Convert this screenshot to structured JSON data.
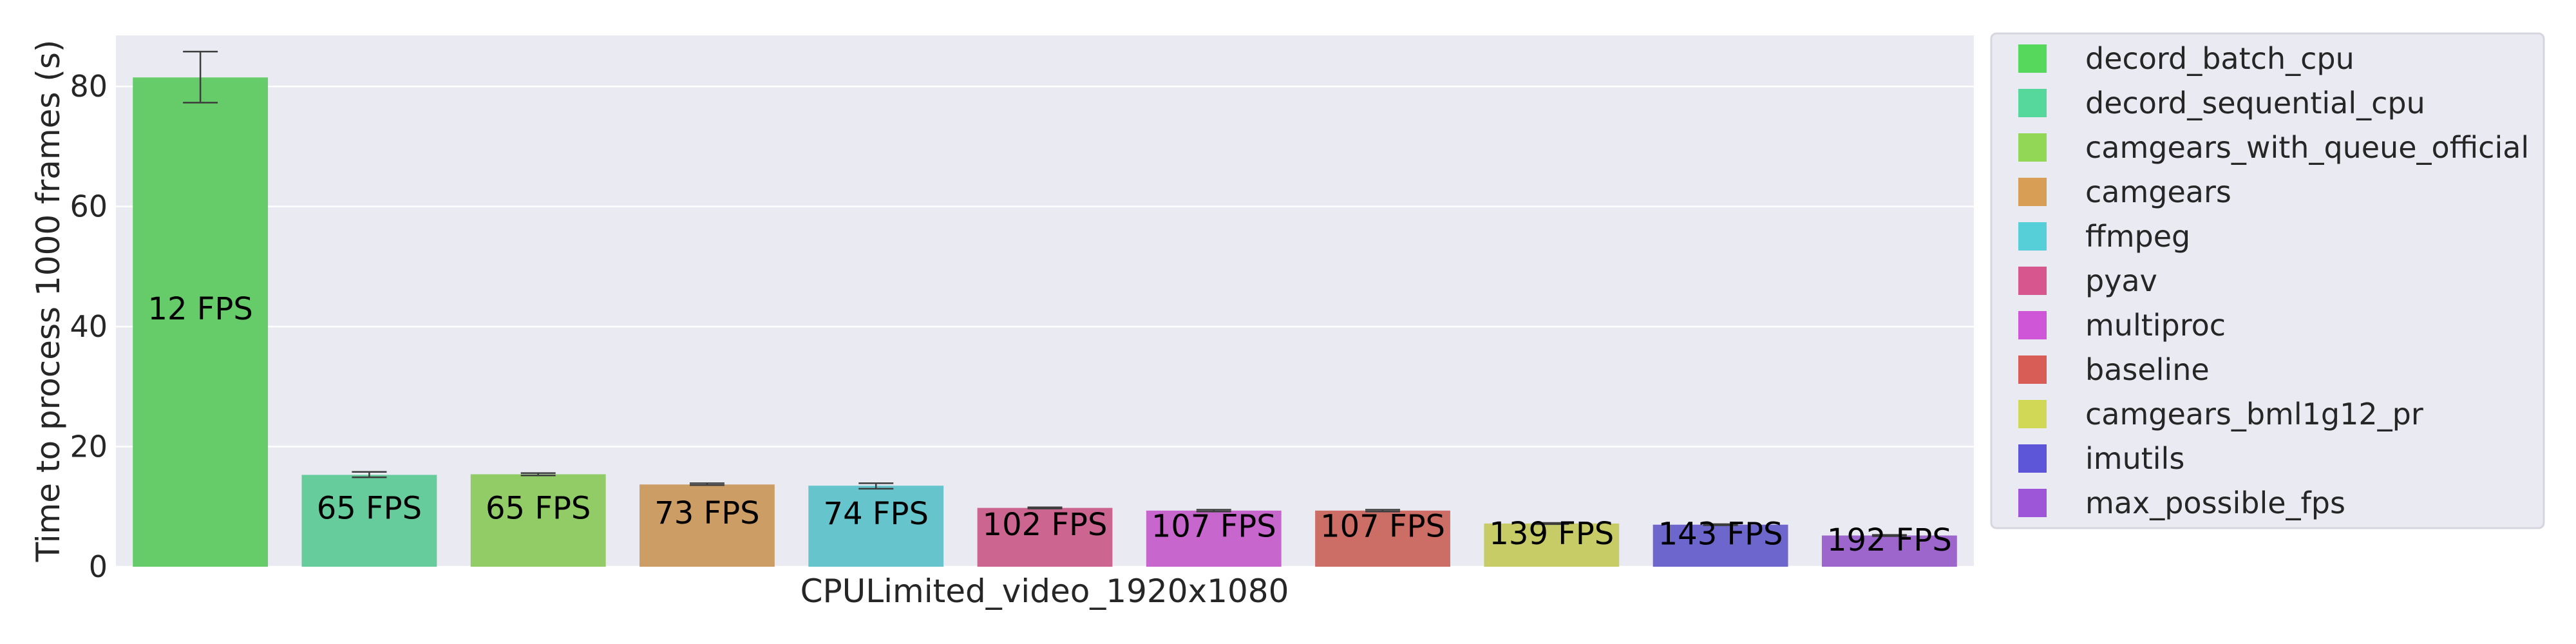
{
  "chart_data": {
    "type": "bar",
    "xlabel": "CPULimited_video_1920x1080",
    "ylabel": "Time to process 1000 frames (s)",
    "ylim": [
      0,
      88.5
    ],
    "yticks": [
      0,
      20,
      40,
      60,
      80
    ],
    "grid": true,
    "legend_position": "right",
    "series": [
      {
        "name": "decord_batch_cpu",
        "value": 81.5,
        "err_low": 77.3,
        "err_high": 85.8,
        "label": "12 FPS",
        "label_y": 43,
        "color": "#66cc6a"
      },
      {
        "name": "decord_sequential_cpu",
        "value": 15.3,
        "err_low": 14.9,
        "err_high": 15.8,
        "label": "65 FPS",
        "label_y": 9.8,
        "color": "#66cc9c"
      },
      {
        "name": "camgears_with_queue_official",
        "value": 15.4,
        "err_low": 15.2,
        "err_high": 15.6,
        "label": "65 FPS",
        "label_y": 9.8,
        "color": "#92cc66"
      },
      {
        "name": "camgears",
        "value": 13.7,
        "err_low": 13.6,
        "err_high": 13.9,
        "label": "73 FPS",
        "label_y": 9.0,
        "color": "#cc9e66"
      },
      {
        "name": "ffmpeg",
        "value": 13.5,
        "err_low": 13.0,
        "err_high": 13.9,
        "label": "74 FPS",
        "label_y": 8.9,
        "color": "#66c4cc"
      },
      {
        "name": "pyav",
        "value": 9.8,
        "err_low": 9.7,
        "err_high": 9.9,
        "label": "102 FPS",
        "label_y": 7.1,
        "color": "#cc6691"
      },
      {
        "name": "multiproc",
        "value": 9.35,
        "err_low": 9.2,
        "err_high": 9.5,
        "label": "107 FPS",
        "label_y": 6.8,
        "color": "#c766cc"
      },
      {
        "name": "baseline",
        "value": 9.35,
        "err_low": 9.2,
        "err_high": 9.5,
        "label": "107 FPS",
        "label_y": 6.8,
        "color": "#cc6d66"
      },
      {
        "name": "camgears_bml1g12_pr",
        "value": 7.2,
        "err_low": 7.1,
        "err_high": 7.3,
        "label": "139 FPS",
        "label_y": 5.6,
        "color": "#c7cc66"
      },
      {
        "name": "imutils",
        "value": 7.0,
        "err_low": 6.9,
        "err_high": 7.1,
        "label": "143 FPS",
        "label_y": 5.5,
        "color": "#6d66cc"
      },
      {
        "name": "max_possible_fps",
        "value": 5.2,
        "err_low": 5.1,
        "err_high": 5.3,
        "label": "192 FPS",
        "label_y": 4.5,
        "color": "#9c66cc"
      }
    ],
    "legend_colors": [
      "#56d85c",
      "#56d89d",
      "#92d856",
      "#d89e56",
      "#56cfd8",
      "#d8568e",
      "#d056d8",
      "#d85d56",
      "#d0d856",
      "#5d56d8",
      "#9d56d8"
    ]
  }
}
